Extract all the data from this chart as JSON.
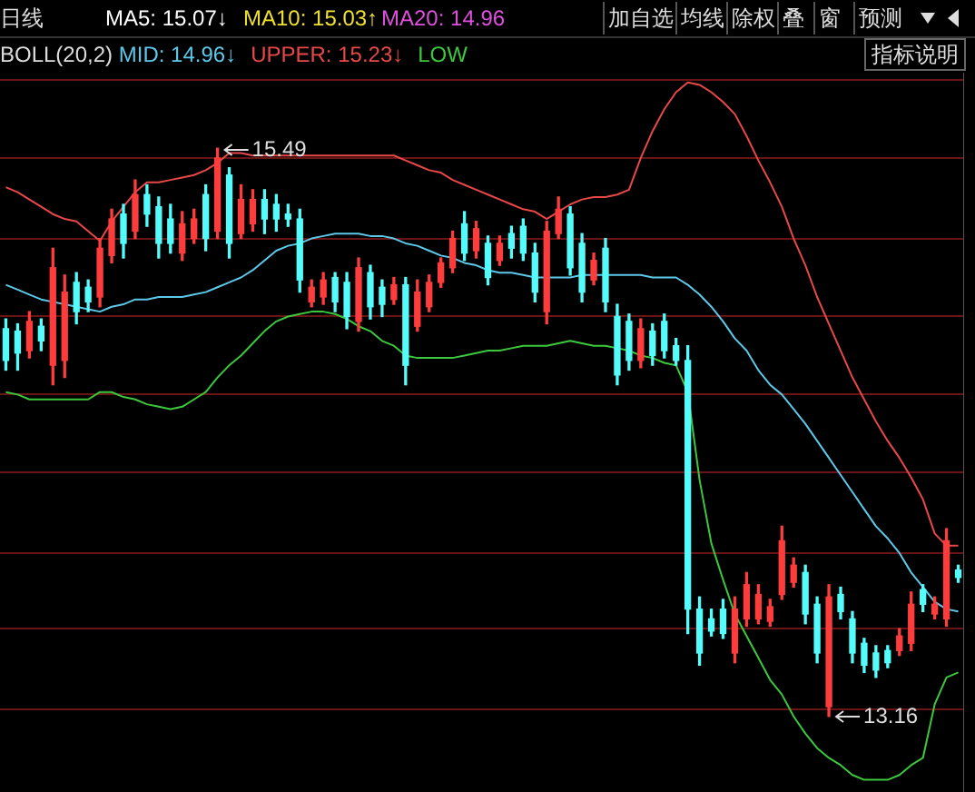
{
  "chart_data": {
    "type": "candlestick",
    "legend": "top left",
    "legend_title": "BOLL(20,2)",
    "grid": "y",
    "tick_labels": false,
    "ylim": [
      12.85,
      15.8
    ],
    "yticks": [
      {
        "value": 13.19,
        "label": null
      },
      {
        "value": 13.52,
        "label": null
      },
      {
        "value": 13.83,
        "label": null
      },
      {
        "value": 14.16,
        "label": null
      },
      {
        "value": 14.48,
        "label": null
      },
      {
        "value": 14.8,
        "label": null
      },
      {
        "value": 15.12,
        "label": null
      },
      {
        "value": 15.45,
        "label": null
      },
      {
        "value": 15.77,
        "label": null
      }
    ],
    "annotations": [
      "日线",
      "MA5: 15.07↓",
      "MA10: 15.03↑",
      "MA20: 14.96",
      "加自选",
      "均线",
      "除权",
      "叠",
      "窗",
      "预测",
      "指标说明",
      {
        "text": "15.49",
        "y": 15.49
      },
      "13.16"
    ],
    "categories": [
      null,
      null,
      null,
      null,
      null,
      null,
      null,
      null,
      null,
      null,
      null,
      null,
      null,
      null,
      null,
      null,
      null,
      null,
      null,
      null,
      null,
      null,
      null,
      null,
      null,
      null,
      null,
      null,
      null,
      null,
      null,
      null,
      null,
      null,
      null,
      null,
      null,
      null,
      null,
      null,
      null,
      null,
      null,
      null,
      null,
      null,
      null,
      null,
      null,
      null,
      null,
      null,
      null,
      null,
      null,
      null,
      null,
      null,
      null,
      null,
      null,
      null,
      null,
      null,
      null,
      null,
      null,
      null,
      null,
      null,
      null,
      null,
      null,
      null,
      null,
      null,
      null,
      null,
      null,
      null,
      null,
      null
    ],
    "ohlc": [
      [
        14.75,
        14.79,
        14.58,
        14.62
      ],
      [
        14.74,
        14.77,
        14.58,
        14.65
      ],
      [
        14.66,
        14.82,
        14.63,
        14.78
      ],
      [
        14.76,
        14.79,
        14.66,
        14.7
      ],
      [
        14.6,
        15.08,
        14.52,
        15.0
      ],
      [
        14.62,
        14.97,
        14.55,
        14.9
      ],
      [
        14.94,
        14.98,
        14.77,
        14.82
      ],
      [
        14.92,
        14.95,
        14.82,
        14.86
      ],
      [
        14.88,
        15.12,
        14.84,
        15.08
      ],
      [
        15.05,
        15.24,
        15.02,
        15.2
      ],
      [
        15.22,
        15.26,
        15.04,
        15.1
      ],
      [
        15.15,
        15.36,
        15.12,
        15.3
      ],
      [
        15.3,
        15.34,
        15.17,
        15.22
      ],
      [
        15.25,
        15.29,
        15.04,
        15.1
      ],
      [
        15.2,
        15.26,
        15.06,
        15.1
      ],
      [
        15.06,
        15.23,
        15.03,
        15.18
      ],
      [
        15.12,
        15.24,
        15.1,
        15.2
      ],
      [
        15.3,
        15.34,
        15.07,
        15.12
      ],
      [
        15.15,
        15.49,
        15.12,
        15.45
      ],
      [
        15.38,
        15.41,
        15.04,
        15.1
      ],
      [
        15.14,
        15.34,
        15.12,
        15.28
      ],
      [
        15.18,
        15.32,
        15.15,
        15.28
      ],
      [
        15.28,
        15.32,
        15.14,
        15.2
      ],
      [
        15.26,
        15.3,
        15.15,
        15.2
      ],
      [
        15.22,
        15.26,
        15.17,
        15.2
      ],
      [
        15.2,
        15.24,
        14.9,
        14.95
      ],
      [
        14.86,
        14.95,
        14.84,
        14.92
      ],
      [
        14.88,
        14.98,
        14.85,
        14.95
      ],
      [
        14.96,
        14.98,
        14.82,
        14.86
      ],
      [
        14.94,
        14.98,
        14.75,
        14.8
      ],
      [
        14.78,
        15.04,
        14.74,
        15.0
      ],
      [
        14.98,
        15.01,
        14.79,
        14.84
      ],
      [
        14.92,
        14.95,
        14.8,
        14.85
      ],
      [
        14.87,
        14.96,
        14.85,
        14.93
      ],
      [
        14.93,
        14.96,
        14.52,
        14.6
      ],
      [
        14.76,
        14.95,
        14.74,
        14.9
      ],
      [
        14.84,
        14.97,
        14.82,
        14.94
      ],
      [
        14.94,
        15.04,
        14.92,
        15.02
      ],
      [
        15.0,
        15.15,
        14.98,
        15.12
      ],
      [
        15.18,
        15.23,
        15.03,
        15.06
      ],
      [
        15.07,
        15.19,
        15.04,
        15.16
      ],
      [
        15.1,
        15.13,
        14.93,
        14.96
      ],
      [
        15.03,
        15.13,
        15.01,
        15.1
      ],
      [
        15.14,
        15.17,
        15.04,
        15.08
      ],
      [
        15.17,
        15.2,
        15.03,
        15.06
      ],
      [
        15.06,
        15.1,
        14.86,
        14.9
      ],
      [
        14.82,
        15.19,
        14.77,
        15.15
      ],
      [
        15.14,
        15.29,
        15.12,
        15.24
      ],
      [
        15.22,
        15.25,
        14.97,
        15.0
      ],
      [
        15.1,
        15.14,
        14.86,
        14.9
      ],
      [
        14.95,
        15.06,
        14.93,
        15.03
      ],
      [
        15.08,
        15.12,
        14.82,
        14.86
      ],
      [
        14.8,
        14.85,
        14.52,
        14.56
      ],
      [
        14.78,
        14.81,
        14.58,
        14.62
      ],
      [
        14.62,
        14.79,
        14.59,
        14.75
      ],
      [
        14.74,
        14.77,
        14.6,
        14.64
      ],
      [
        14.78,
        14.81,
        14.63,
        14.66
      ],
      [
        14.68,
        14.71,
        14.6,
        14.62
      ],
      [
        14.62,
        14.68,
        13.5,
        13.6
      ],
      [
        13.6,
        13.65,
        13.37,
        13.42
      ],
      [
        13.56,
        13.6,
        13.49,
        13.51
      ],
      [
        13.6,
        13.64,
        13.48,
        13.5
      ],
      [
        13.42,
        13.65,
        13.38,
        13.6
      ],
      [
        13.56,
        13.75,
        13.53,
        13.7
      ],
      [
        13.56,
        13.7,
        13.54,
        13.66
      ],
      [
        13.55,
        13.64,
        13.53,
        13.61
      ],
      [
        13.66,
        13.94,
        13.64,
        13.88
      ],
      [
        13.71,
        13.81,
        13.69,
        13.78
      ],
      [
        13.75,
        13.78,
        13.54,
        13.58
      ],
      [
        13.62,
        13.65,
        13.38,
        13.42
      ],
      [
        13.2,
        13.7,
        13.16,
        13.65
      ],
      [
        13.66,
        13.69,
        13.56,
        13.59
      ],
      [
        13.56,
        13.59,
        13.38,
        13.42
      ],
      [
        13.46,
        13.48,
        13.34,
        13.37
      ],
      [
        13.42,
        13.45,
        13.32,
        13.35
      ],
      [
        13.43,
        13.45,
        13.36,
        13.38
      ],
      [
        13.43,
        13.52,
        13.41,
        13.49
      ],
      [
        13.46,
        13.67,
        13.43,
        13.62
      ],
      [
        13.68,
        13.7,
        13.59,
        13.62
      ],
      [
        13.58,
        13.65,
        13.56,
        13.62
      ],
      [
        13.56,
        13.93,
        13.53,
        13.88
      ],
      [
        13.76,
        13.78,
        13.71,
        13.73
      ]
    ],
    "colors": [
      "#54fcfc",
      "#54fcfc",
      "#ff3c3c",
      "#54fcfc",
      "#ff3c3c",
      "#ff3c3c",
      "#54fcfc",
      "#54fcfc",
      "#ff3c3c",
      "#ff3c3c",
      "#54fcfc",
      "#ff3c3c",
      "#54fcfc",
      "#54fcfc",
      "#54fcfc",
      "#ff3c3c",
      "#ff3c3c",
      "#54fcfc",
      "#ff3c3c",
      "#54fcfc",
      "#ff3c3c",
      "#ff3c3c",
      "#54fcfc",
      "#54fcfc",
      "#54fcfc",
      "#54fcfc",
      "#ff3c3c",
      "#ff3c3c",
      "#54fcfc",
      "#54fcfc",
      "#ff3c3c",
      "#54fcfc",
      "#54fcfc",
      "#ff3c3c",
      "#54fcfc",
      "#ff3c3c",
      "#ff3c3c",
      "#ff3c3c",
      "#ff3c3c",
      "#54fcfc",
      "#ff3c3c",
      "#54fcfc",
      "#ff3c3c",
      "#54fcfc",
      "#54fcfc",
      "#54fcfc",
      "#ff3c3c",
      "#ff3c3c",
      "#54fcfc",
      "#54fcfc",
      "#ff3c3c",
      "#54fcfc",
      "#54fcfc",
      "#54fcfc",
      "#ff3c3c",
      "#54fcfc",
      "#54fcfc",
      "#54fcfc",
      "#54fcfc",
      "#54fcfc",
      "#54fcfc",
      "#54fcfc",
      "#ff3c3c",
      "#ff3c3c",
      "#ff3c3c",
      "#ff3c3c",
      "#ff3c3c",
      "#ff3c3c",
      "#54fcfc",
      "#54fcfc",
      "#ff3c3c",
      "#54fcfc",
      "#54fcfc",
      "#54fcfc",
      "#54fcfc",
      "#54fcfc",
      "#ff3c3c",
      "#ff3c3c",
      "#54fcfc",
      "#ff3c3c",
      "#ff3c3c",
      "#54fcfc"
    ],
    "series": [
      {
        "type": "line",
        "name": "MID: 14.96↓",
        "color": "#5ec8e8",
        "values": [
          14.93,
          14.91,
          14.89,
          14.87,
          14.86,
          14.85,
          14.84,
          14.83,
          14.82,
          14.84,
          14.85,
          14.87,
          14.87,
          14.88,
          14.88,
          14.88,
          14.89,
          14.9,
          14.92,
          14.94,
          14.96,
          14.99,
          15.03,
          15.07,
          15.09,
          15.1,
          15.12,
          15.13,
          15.14,
          15.14,
          15.14,
          15.13,
          15.13,
          15.12,
          15.1,
          15.09,
          15.07,
          15.05,
          15.04,
          15.02,
          15.01,
          14.99,
          14.98,
          14.98,
          14.97,
          14.96,
          14.96,
          14.96,
          14.96,
          14.97,
          14.97,
          14.97,
          14.97,
          14.97,
          14.97,
          14.96,
          14.96,
          14.96,
          14.93,
          14.89,
          14.84,
          14.78,
          14.71,
          14.66,
          14.58,
          14.52,
          14.48,
          14.42,
          14.36,
          14.29,
          14.22,
          14.15,
          14.08,
          14.01,
          13.94,
          13.89,
          13.83,
          13.75,
          13.69,
          13.63,
          13.6,
          13.59
        ]
      },
      {
        "type": "line",
        "name": "UPPER: 15.23↓",
        "color": "#e84848",
        "values": [
          15.33,
          15.31,
          15.28,
          15.25,
          15.22,
          15.2,
          15.19,
          15.15,
          15.11,
          15.19,
          15.25,
          15.31,
          15.35,
          15.35,
          15.36,
          15.37,
          15.38,
          15.4,
          15.43,
          15.47,
          15.47,
          15.46,
          15.46,
          15.46,
          15.46,
          15.46,
          15.46,
          15.46,
          15.46,
          15.46,
          15.46,
          15.46,
          15.46,
          15.46,
          15.44,
          15.42,
          15.4,
          15.39,
          15.36,
          15.34,
          15.32,
          15.3,
          15.28,
          15.26,
          15.24,
          15.23,
          15.2,
          15.23,
          15.26,
          15.28,
          15.29,
          15.29,
          15.3,
          15.32,
          15.45,
          15.56,
          15.65,
          15.72,
          15.76,
          15.75,
          15.72,
          15.68,
          15.63,
          15.54,
          15.44,
          15.35,
          15.25,
          15.12,
          15.01,
          14.88,
          14.77,
          14.66,
          14.55,
          14.46,
          14.37,
          14.29,
          14.22,
          14.14,
          14.05,
          13.91,
          13.86,
          13.86
        ]
      },
      {
        "type": "line",
        "name": "LOW",
        "color": "#3cc83c",
        "values": [
          14.49,
          14.48,
          14.46,
          14.46,
          14.46,
          14.46,
          14.46,
          14.46,
          14.49,
          14.49,
          14.47,
          14.46,
          14.44,
          14.43,
          14.42,
          14.43,
          14.46,
          14.49,
          14.55,
          14.6,
          14.64,
          14.69,
          14.74,
          14.78,
          14.8,
          14.81,
          14.82,
          14.82,
          14.81,
          14.79,
          14.76,
          14.74,
          14.7,
          14.68,
          14.64,
          14.63,
          14.63,
          14.63,
          14.63,
          14.64,
          14.65,
          14.66,
          14.66,
          14.67,
          14.68,
          14.68,
          14.68,
          14.69,
          14.7,
          14.69,
          14.68,
          14.68,
          14.67,
          14.66,
          14.64,
          14.63,
          14.61,
          14.6,
          14.49,
          14.13,
          13.87,
          13.72,
          13.58,
          13.49,
          13.4,
          13.31,
          13.25,
          13.16,
          13.09,
          13.03,
          12.99,
          12.96,
          12.92,
          12.9,
          12.9,
          12.9,
          12.92,
          12.96,
          12.99,
          13.21,
          13.32,
          13.34
        ]
      }
    ]
  }
}
